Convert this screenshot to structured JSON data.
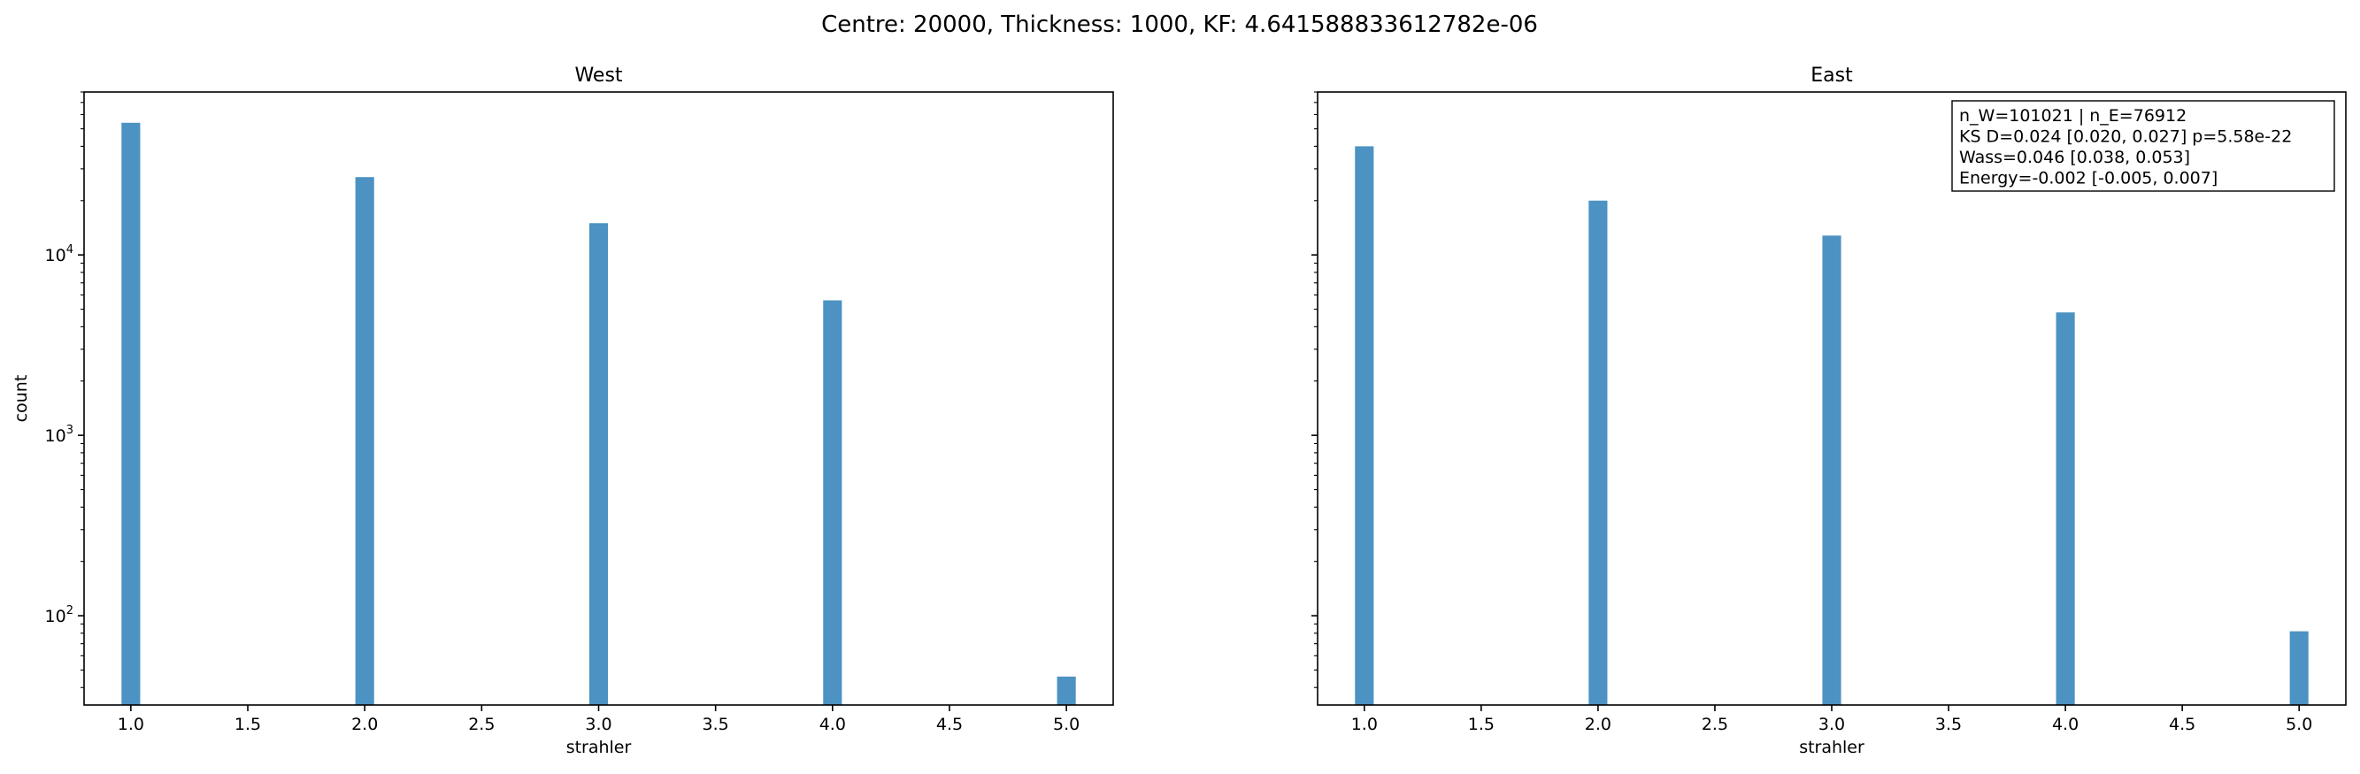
{
  "figure": {
    "suptitle": "Centre: 20000, Thickness: 1000, KF: 4.641588833612782e-06"
  },
  "chart_data": [
    {
      "type": "bar",
      "title": "West",
      "xlabel": "strahler",
      "ylabel": "count",
      "yscale": "log",
      "xlim": [
        0.8,
        5.2
      ],
      "ylim": [
        32,
        80000
      ],
      "xticks": [
        "1.0",
        "1.5",
        "2.0",
        "2.5",
        "3.0",
        "3.5",
        "4.0",
        "4.5",
        "5.0"
      ],
      "yticks": [
        {
          "base": "10",
          "exp": "2",
          "value": 100
        },
        {
          "base": "10",
          "exp": "3",
          "value": 1000
        },
        {
          "base": "10",
          "exp": "4",
          "value": 10000
        }
      ],
      "show_ytick_labels": true,
      "bar_color": "#1f77b4",
      "bar_alpha": 0.8,
      "bin_width": 0.08,
      "x": [
        1.0,
        2.0,
        3.0,
        4.0,
        5.0
      ],
      "values": [
        54000,
        27000,
        15000,
        5600,
        46
      ],
      "grid": false
    },
    {
      "type": "bar",
      "title": "East",
      "xlabel": "strahler",
      "ylabel": "",
      "yscale": "log",
      "xlim": [
        0.8,
        5.2
      ],
      "ylim": [
        32,
        80000
      ],
      "xticks": [
        "1.0",
        "1.5",
        "2.0",
        "2.5",
        "3.0",
        "3.5",
        "4.0",
        "4.5",
        "5.0"
      ],
      "yticks": [
        {
          "base": "10",
          "exp": "2",
          "value": 100
        },
        {
          "base": "10",
          "exp": "3",
          "value": 1000
        },
        {
          "base": "10",
          "exp": "4",
          "value": 10000
        }
      ],
      "show_ytick_labels": false,
      "bar_color": "#1f77b4",
      "bar_alpha": 0.8,
      "bin_width": 0.08,
      "x": [
        1.0,
        2.0,
        3.0,
        4.0,
        5.0
      ],
      "values": [
        40000,
        20000,
        12800,
        4800,
        82
      ],
      "grid": false,
      "annotation": {
        "placement": "top-right",
        "lines": [
          "n_W=101021 | n_E=76912",
          "KS D=0.024 [0.020, 0.027]  p=5.58e-22",
          "Wass=0.046 [0.038, 0.053]",
          "Energy=-0.002 [-0.005, 0.007]"
        ]
      }
    }
  ]
}
